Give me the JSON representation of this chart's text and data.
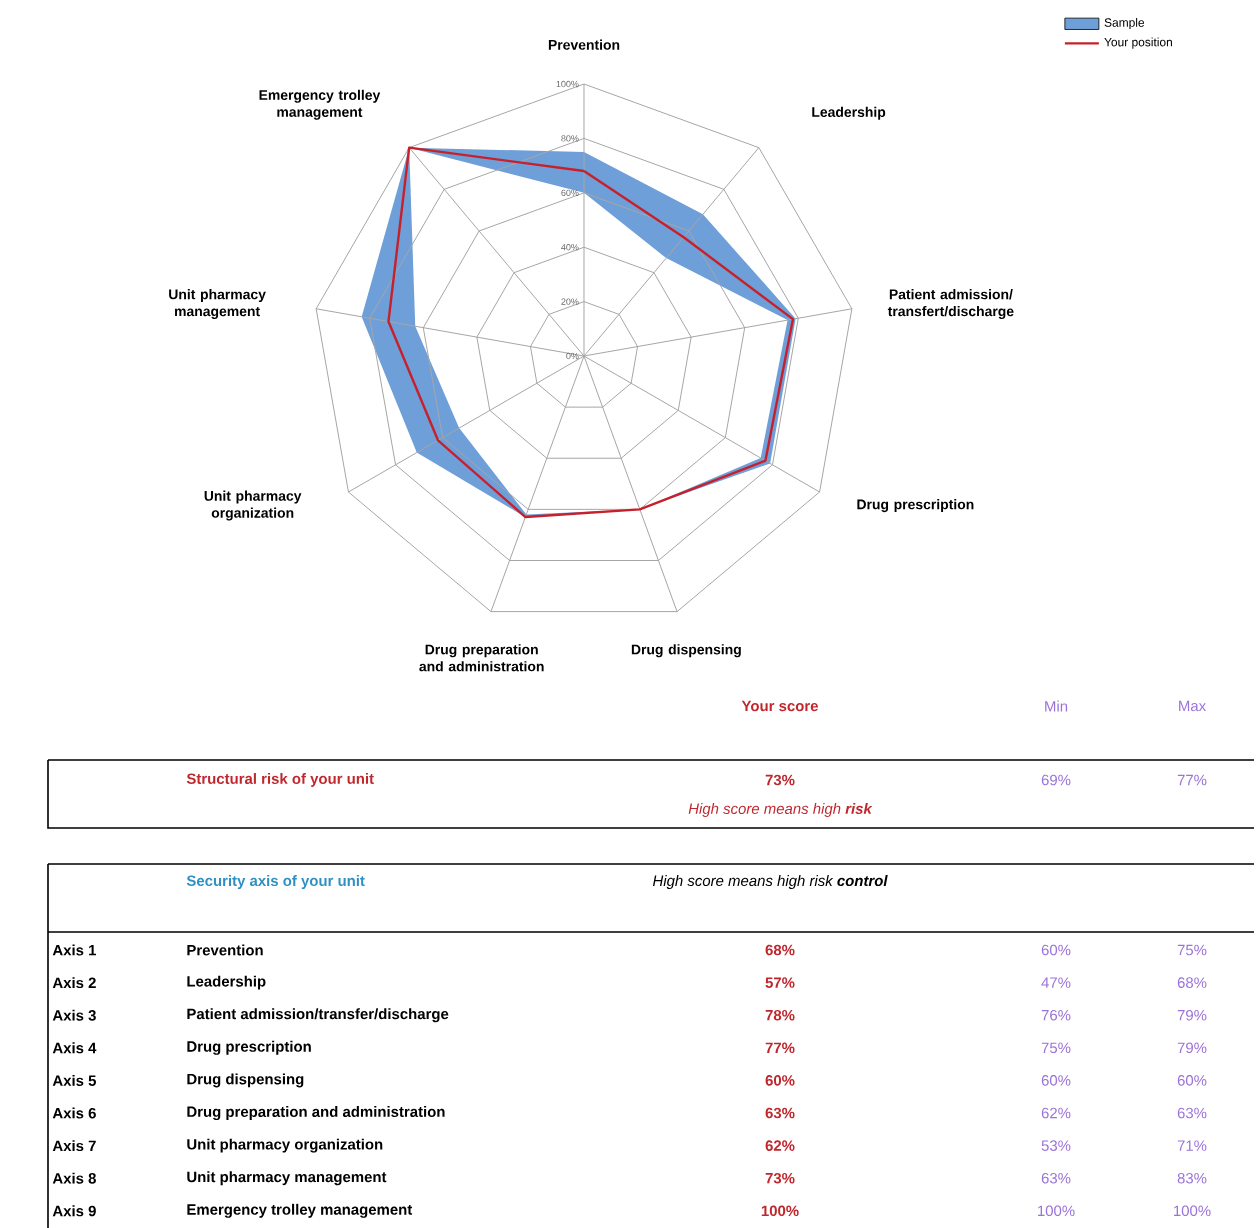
{
  "chart_data": {
    "type": "radar",
    "categories": [
      "Prevention",
      "Leadership",
      "Patient admission/ transfert/discharge",
      "Drug prescription",
      "Drug dispensing",
      "Drug preparation and administration",
      "Unit pharmacy organization",
      "Unit pharmacy management",
      "Emergency trolley management"
    ],
    "series": [
      {
        "name": "Sample",
        "type": "area",
        "color": "#6f9fd8",
        "values": [
          75,
          68,
          79,
          79,
          60,
          63,
          71,
          83,
          100
        ]
      },
      {
        "type": "area",
        "color": "#ffffff",
        "values": [
          60,
          47,
          76,
          75,
          60,
          62,
          53,
          63,
          100
        ]
      },
      {
        "name": "Your position",
        "color": "#c8202a",
        "values": [
          68,
          57,
          78,
          77,
          60,
          63,
          62,
          73,
          100
        ]
      }
    ],
    "ylim": [
      0,
      100
    ],
    "yticks": [
      {
        "value": 0,
        "label": "0%"
      },
      {
        "value": 20,
        "label": "20%"
      },
      {
        "value": 40,
        "label": "40%"
      },
      {
        "value": 60,
        "label": "60%"
      },
      {
        "value": 80,
        "label": "80%"
      },
      {
        "value": 100,
        "label": "100%"
      }
    ],
    "grid": true,
    "legend": "top right",
    "annotations": [
      "Your score",
      "Min",
      "Max",
      "Structural risk of your unit",
      "73%",
      "69%",
      "77%",
      "High score means high **risk**",
      "Security axis of your unit",
      "High score means high risk **control**",
      "Axis 1",
      "Prevention",
      "68%",
      "60%",
      "75%",
      "Axis 2",
      "Leadership",
      "57%",
      "47%",
      "68%",
      "Axis 3",
      "Patient admission/transfer/discharge",
      "78%",
      "76%",
      "79%",
      "Axis 4",
      "Drug prescription",
      "77%",
      "75%",
      "79%",
      "Axis 5",
      "Drug dispensing",
      "60%",
      "60%",
      "60%",
      "Axis 6",
      "Drug preparation and administration",
      "63%",
      "62%",
      "63%",
      "Axis 7",
      "Unit pharmacy organization",
      "62%",
      "53%",
      "71%",
      "Axis 8",
      "Unit pharmacy management",
      "73%",
      "63%",
      "83%",
      "Axis 9",
      "Emergency trolley management",
      "100%",
      "100%",
      "100%"
    ]
  }
}
